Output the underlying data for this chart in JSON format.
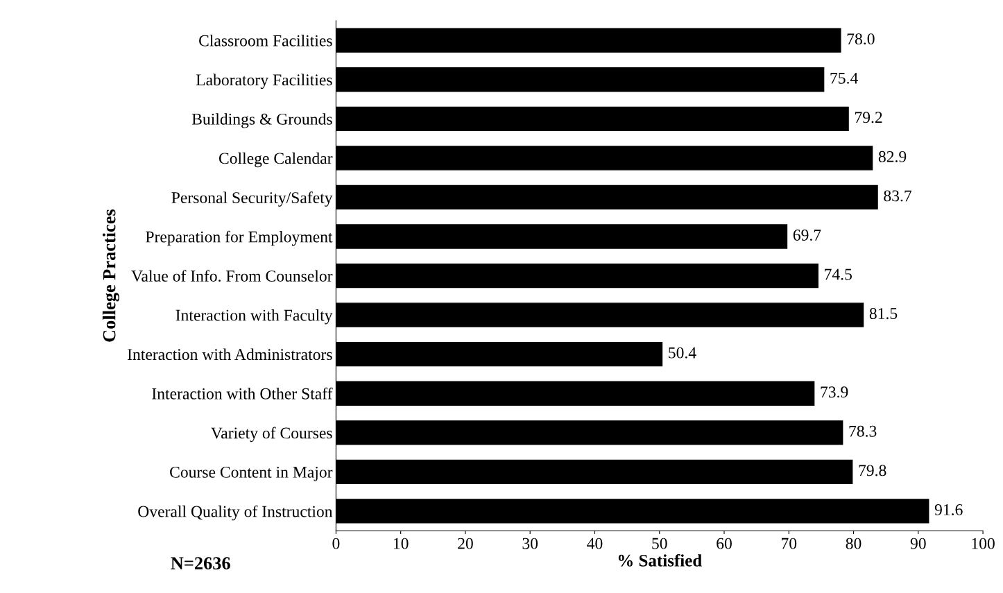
{
  "chart_data": {
    "type": "bar",
    "orientation": "horizontal",
    "categories": [
      "Classroom Facilities",
      "Laboratory Facilities",
      "Buildings & Grounds",
      "College Calendar",
      "Personal Security/Safety",
      "Preparation for Employment",
      "Value of Info. From Counselor",
      "Interaction with Faculty",
      "Interaction with Administrators",
      "Interaction with Other Staff",
      "Variety of Courses",
      "Course Content in Major",
      "Overall Quality of Instruction"
    ],
    "values": [
      78.0,
      75.4,
      79.2,
      82.9,
      83.7,
      69.7,
      74.5,
      81.5,
      50.4,
      73.9,
      78.3,
      79.8,
      91.6
    ],
    "value_labels": [
      "78.0",
      "75.4",
      "79.2",
      "82.9",
      "83.7",
      "69.7",
      "74.5",
      "81.5",
      "50.4",
      "73.9",
      "78.3",
      "79.8",
      "91.6"
    ],
    "color": "#000000",
    "xlim": [
      0,
      100
    ],
    "xticks": [
      0,
      10,
      20,
      30,
      40,
      50,
      60,
      70,
      80,
      90,
      100
    ],
    "xlabel": "% Satisfied",
    "ylabel": "College Practices",
    "annotations": [
      "N=2636"
    ],
    "grid": false
  }
}
